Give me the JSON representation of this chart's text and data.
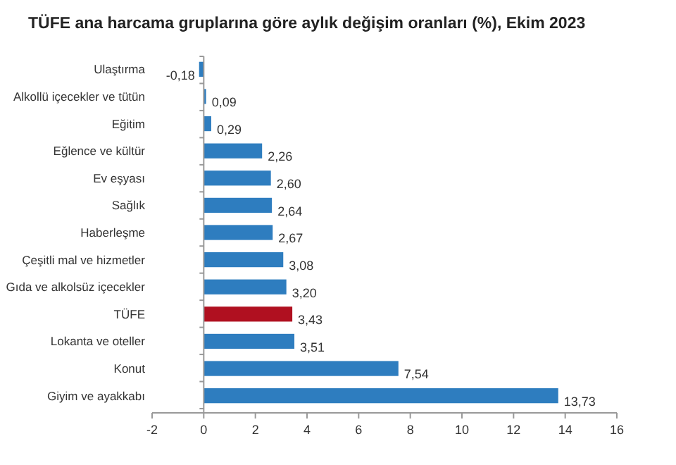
{
  "chart_data": {
    "type": "bar",
    "orientation": "horizontal",
    "title": "TÜFE ana harcama gruplarına göre aylık değişim oranları (%), Ekim 2023",
    "categories": [
      "Ulaştırma",
      "Alkollü içecekler ve tütün",
      "Eğitim",
      "Eğlence ve kültür",
      "Ev eşyası",
      "Sağlık",
      "Haberleşme",
      "Çeşitli mal ve hizmetler",
      "Gıda ve alkolsüz içecekler",
      "TÜFE",
      "Lokanta ve oteller",
      "Konut",
      "Giyim ve ayakkabı"
    ],
    "values": [
      -0.18,
      0.09,
      0.29,
      2.26,
      2.6,
      2.64,
      2.67,
      3.08,
      3.2,
      3.43,
      3.51,
      7.54,
      13.73
    ],
    "value_labels": [
      "-0,18",
      "0,09",
      "0,29",
      "2,26",
      "2,60",
      "2,64",
      "2,67",
      "3,08",
      "3,20",
      "3,43",
      "3,51",
      "7,54",
      "13,73"
    ],
    "colors": [
      "#2e7dbf",
      "#2e7dbf",
      "#2e7dbf",
      "#2e7dbf",
      "#2e7dbf",
      "#2e7dbf",
      "#2e7dbf",
      "#2e7dbf",
      "#2e7dbf",
      "#b01020",
      "#2e7dbf",
      "#2e7dbf",
      "#2e7dbf"
    ],
    "xlim": [
      -2,
      16
    ],
    "xticks": [
      -2,
      0,
      2,
      4,
      6,
      8,
      10,
      12,
      14,
      16
    ]
  }
}
